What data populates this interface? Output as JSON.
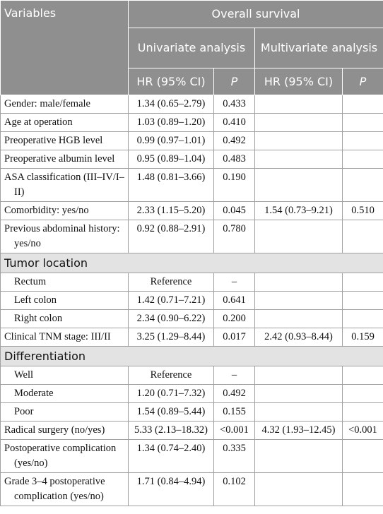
{
  "header": {
    "variables": "Variables",
    "overall_survival": "Overall survival",
    "univariate": "Univariate analysis",
    "multivariate": "Multivariate analysis",
    "hr_uni": "HR (95% CI)",
    "p_uni": "P",
    "hr_multi": "HR (95% CI)",
    "p_multi": "P"
  },
  "groups": [
    {
      "rows": [
        [
          "Gender: male/female",
          "1.34 (0.65–2.79)",
          "0.433"
        ],
        [
          "Age at operation",
          "1.03 (0.89–1.20)",
          "0.410"
        ],
        [
          "Preoperative HGB level",
          "0.99 (0.97–1.01)",
          "0.492"
        ],
        [
          "Preoperative albumin level",
          "0.95 (0.89–1.04)",
          "0.483"
        ],
        [
          "ASA classification (III–IV/I–II)",
          "1.48 (0.81–3.66)",
          "0.190"
        ],
        [
          "Comorbidity: yes/no",
          "2.33 (1.15–5.20)",
          "0.045",
          "1.54 (0.73–9.21)",
          "0.510"
        ],
        [
          "Previous abdominal history: yes/no",
          "0.92 (0.88–2.91)",
          "0.780"
        ]
      ]
    },
    {
      "section": "Tumor location",
      "rows": [
        [
          "Rectum",
          "Reference",
          "–"
        ],
        [
          "Left colon",
          "1.42 (0.71–7.21)",
          "0.641"
        ],
        [
          "Right colon",
          "2.34 (0.90–6.22)",
          "0.200"
        ]
      ]
    },
    {
      "rows": [
        [
          "Clinical TNM stage: III/II",
          "3.25 (1.29–8.44)",
          "0.017",
          "2.42 (0.93–8.44)",
          "0.159"
        ]
      ]
    },
    {
      "section": "Differentiation",
      "rows": [
        [
          "Well",
          "Reference",
          "–"
        ],
        [
          "Moderate",
          "1.20 (0.71–7.32)",
          "0.492"
        ],
        [
          "Poor",
          "1.54 (0.89–5.44)",
          "0.155"
        ]
      ]
    },
    {
      "rows": [
        [
          "Radical surgery (no/yes)",
          "5.33 (2.13–18.32)",
          "<0.001",
          "4.32 (1.93–12.45)",
          "<0.001"
        ],
        [
          "Postoperative complication (yes/no)",
          "1.34 (0.74–2.40)",
          "0.335"
        ],
        [
          "Grade 3–4 postoperative complication (yes/no)",
          "1.71 (0.84–4.94)",
          "0.102"
        ]
      ]
    }
  ]
}
